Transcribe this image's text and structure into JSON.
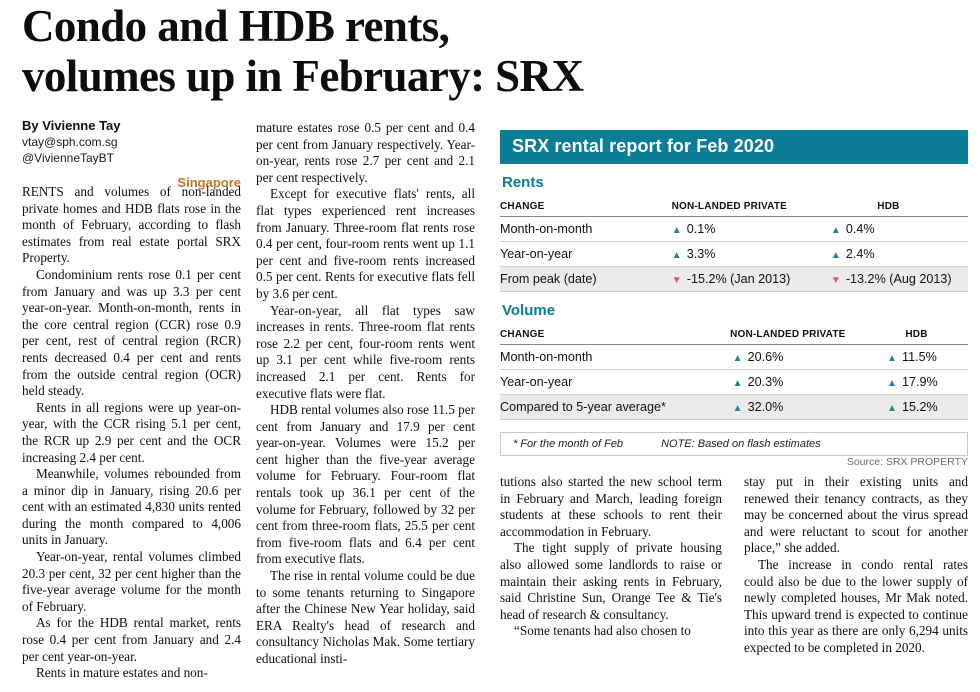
{
  "colors": {
    "teal": "#0b7e95",
    "up_arrow": "#1585a0",
    "down_arrow": "#e8566b",
    "dateline_orange": "#c0762c"
  },
  "article": {
    "headline_lines": [
      "Condo and HDB rents,",
      "volumes up in February: SRX"
    ],
    "byline": {
      "author": "By Vivienne Tay",
      "email": "vtay@sph.com.sg",
      "twitter": "@VivienneTayBT",
      "dateline": "Singapore"
    },
    "col1": [
      "RENTS and volumes of non-landed private homes and HDB flats rose in the month of February, according to flash estimates from real estate portal SRX Property.",
      "Condominium rents rose 0.1 per cent from January and was up 3.3 per cent year-on-year. Month-on-month, rents in the core central region (CCR) rose 0.9 per cent, rest of central region (RCR) rents decreased 0.4 per cent and rents from the outside central region (OCR) held steady.",
      "Rents in all regions were up year-on-year, with the CCR rising 5.1 per cent, the RCR up 2.9 per cent and the OCR increasing 2.4 per cent.",
      "Meanwhile, volumes rebounded from a minor dip in January, rising 20.6 per cent with an estimated 4,830 units rented during the month compared to 4,006 units in January.",
      "Year-on-year, rental volumes climbed 20.3 per cent, 32 per cent higher than the five-year average volume for the month of February.",
      "As for the HDB rental market, rents rose 0.4 per cent from January and 2.4 per cent year-on-year.",
      "Rents in mature estates and non-"
    ],
    "col2": [
      "mature estates rose 0.5 per cent and 0.4 per cent from January respectively. Year-on-year, rents rose 2.7 per cent and 2.1 per cent respectively.",
      "Except for executive flats' rents, all flat types experienced rent increases from January. Three-room flat rents rose 0.4 per cent, four-room rents went up 1.1 per cent and five-room rents increased 0.5 per cent. Rents for executive flats fell by 3.6 per cent.",
      "Year-on-year, all flat types saw increases in rents. Three-room flat rents rose 2.2 per cent, four-room rents went up 3.1 per cent while five-room rents increased 2.1 per cent. Rents for executive flats were flat.",
      "HDB rental volumes also rose 11.5 per cent from January and 17.9 per cent year-on-year. Volumes were 15.2 per cent higher than the five-year average volume for February. Four-room flat rentals took up 36.1 per cent of the volume for February, followed by 32 per cent from three-room flats, 25.5 per cent from five-room flats and 6.4 per cent from executive flats.",
      "The rise in rental volume could be due to some tenants returning to Singapore after the Chinese New Year holiday, said ERA Realty's head of research and consultancy Nicholas Mak. Some tertiary educational insti-"
    ],
    "col3": [
      "tutions also started the new school term in February and March, leading foreign students at these schools to rent their accommodation in February.",
      "The tight supply of private housing also allowed some landlords to raise or maintain their asking rents in February, said Christine Sun, Orange Tee & Tie's head of research & consultancy.",
      "“Some tenants had also chosen to"
    ],
    "col4": [
      "stay put in their existing units and renewed their tenancy contracts, as they may be concerned about the virus spread and were reluctant to scout for another place,” she added.",
      "The increase in condo rental rates could also be due to the lower supply of newly completed houses, Mr Mak noted. This upward trend is expected to continue into this year as there are only 6,294 units expected to be completed in 2020."
    ]
  },
  "infographic": {
    "title": "SRX rental report for Feb 2020",
    "rents": {
      "heading": "Rents",
      "columns": [
        "CHANGE",
        "NON-LANDED PRIVATE",
        "HDB"
      ],
      "rows": [
        {
          "label": "Month-on-month",
          "private": {
            "dir": "up",
            "value": "0.1%"
          },
          "hdb": {
            "dir": "up",
            "value": "0.4%"
          }
        },
        {
          "label": "Year-on-year",
          "private": {
            "dir": "up",
            "value": "3.3%"
          },
          "hdb": {
            "dir": "up",
            "value": "2.4%"
          }
        },
        {
          "label": "From peak (date)",
          "private": {
            "dir": "down",
            "value": "-15.2% (Jan 2013)"
          },
          "hdb": {
            "dir": "down",
            "value": "-13.2% (Aug 2013)"
          }
        }
      ]
    },
    "volume": {
      "heading": "Volume",
      "columns": [
        "CHANGE",
        "NON-LANDED PRIVATE",
        "HDB"
      ],
      "rows": [
        {
          "label": "Month-on-month",
          "private": {
            "dir": "up",
            "value": "20.6%"
          },
          "hdb": {
            "dir": "up",
            "value": "11.5%"
          }
        },
        {
          "label": "Year-on-year",
          "private": {
            "dir": "up",
            "value": "20.3%"
          },
          "hdb": {
            "dir": "up",
            "value": "17.9%"
          }
        },
        {
          "label": "Compared to 5-year average*",
          "private": {
            "dir": "up",
            "value": "32.0%"
          },
          "hdb": {
            "dir": "up",
            "value": "15.2%"
          }
        }
      ]
    },
    "footnote_a": "* For the month of Feb",
    "footnote_b": "NOTE: Based on flash estimates",
    "source": "Source: SRX PROPERTY"
  },
  "chart_data": {
    "type": "table",
    "title": "SRX rental report for Feb 2020",
    "tables": [
      {
        "name": "Rents",
        "columns": [
          "CHANGE",
          "NON-LANDED PRIVATE",
          "HDB"
        ],
        "rows": [
          [
            "Month-on-month",
            "+0.1%",
            "+0.4%"
          ],
          [
            "Year-on-year",
            "+3.3%",
            "+2.4%"
          ],
          [
            "From peak (date)",
            "-15.2% (Jan 2013)",
            "-13.2% (Aug 2013)"
          ]
        ]
      },
      {
        "name": "Volume",
        "columns": [
          "CHANGE",
          "NON-LANDED PRIVATE",
          "HDB"
        ],
        "rows": [
          [
            "Month-on-month",
            "+20.6%",
            "+11.5%"
          ],
          [
            "Year-on-year",
            "+20.3%",
            "+17.9%"
          ],
          [
            "Compared to 5-year average*",
            "+32.0%",
            "+15.2%"
          ]
        ]
      }
    ]
  }
}
